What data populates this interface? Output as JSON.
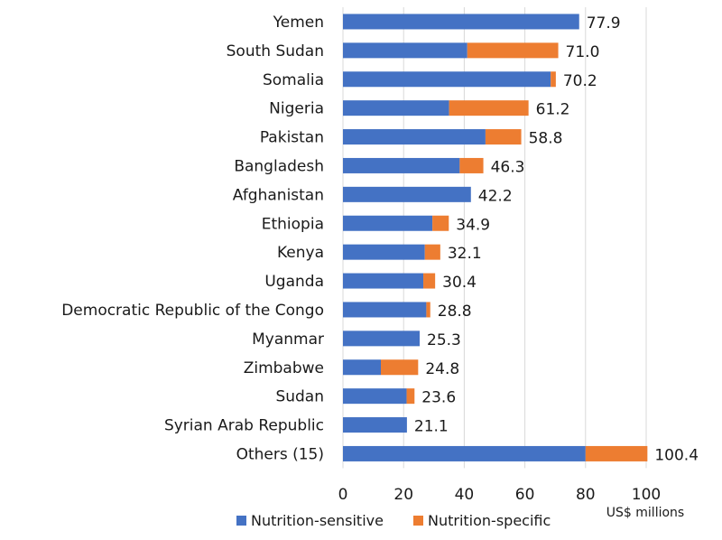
{
  "chart_data": {
    "type": "bar",
    "orientation": "horizontal",
    "stacked": true,
    "categories": [
      "Yemen",
      "South Sudan",
      "Somalia",
      "Nigeria",
      "Pakistan",
      "Bangladesh",
      "Afghanistan",
      "Ethiopia",
      "Kenya",
      "Uganda",
      "Democratic Republic of the Congo",
      "Myanmar",
      "Zimbabwe",
      "Sudan",
      "Syrian Arab Republic",
      "Others (15)"
    ],
    "series": [
      {
        "name": "Nutrition-sensitive",
        "color": "#4472C4",
        "values": [
          77.9,
          41.0,
          68.5,
          35.0,
          47.0,
          38.5,
          42.2,
          29.5,
          27.0,
          26.5,
          27.5,
          25.3,
          12.5,
          21.0,
          21.1,
          80.0
        ]
      },
      {
        "name": "Nutrition-specific",
        "color": "#ED7D31",
        "values": [
          0.0,
          30.0,
          1.7,
          26.2,
          11.8,
          7.8,
          0.0,
          5.4,
          5.1,
          3.9,
          1.3,
          0.0,
          12.3,
          2.6,
          0.0,
          20.4
        ]
      }
    ],
    "totals": [
      "77.9",
      "71.0",
      "70.2",
      "61.2",
      "58.8",
      "46.3",
      "42.2",
      "34.9",
      "32.1",
      "30.4",
      "28.8",
      "25.3",
      "24.8",
      "23.6",
      "21.1",
      "100.4"
    ],
    "xlim": [
      0,
      100
    ],
    "xticks": [
      "0",
      "20",
      "40",
      "60",
      "80",
      "100"
    ],
    "xlabel": "US$ millions",
    "grid": "vertical",
    "legend": "bottom"
  }
}
